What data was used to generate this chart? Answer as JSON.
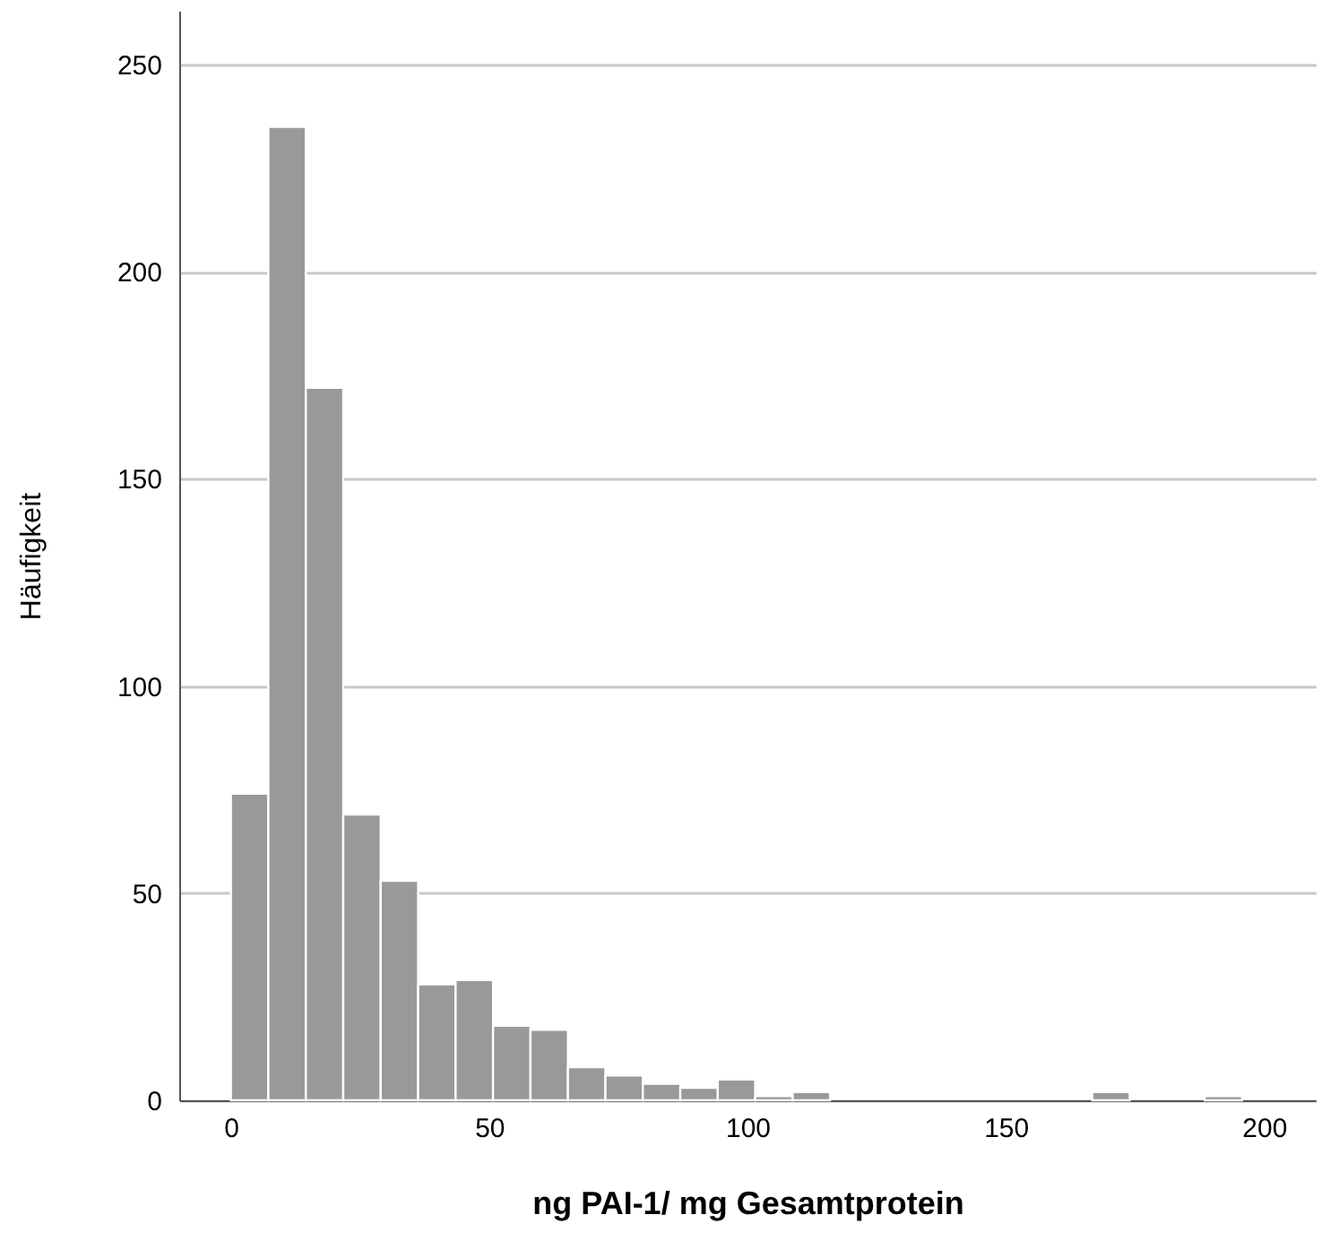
{
  "chart_data": {
    "type": "histogram",
    "xlabel": "ng PAI-1/ mg Gesamtprotein",
    "ylabel": "Häufigkeit",
    "bins": [
      0,
      7.25,
      14.5,
      21.75,
      29,
      36.25,
      43.5,
      50.75,
      58,
      65.25,
      72.5,
      79.75,
      87,
      94.25,
      101.5,
      108.75,
      116,
      123.25,
      130.5,
      137.75,
      145,
      152.25,
      159.5,
      166.75,
      174,
      181.25,
      188.5,
      195.75
    ],
    "values": [
      74,
      235,
      172,
      69,
      53,
      28,
      29,
      18,
      17,
      8,
      6,
      4,
      3,
      5,
      1,
      2,
      0,
      0,
      0,
      0,
      0,
      0,
      0,
      2,
      0,
      0,
      1
    ],
    "color": "#999999",
    "xlim": [
      -10,
      210
    ],
    "xticks": [
      0,
      50,
      100,
      150,
      200
    ],
    "ylim": [
      0,
      263
    ],
    "yticks": [
      0,
      50,
      100,
      150,
      200,
      250
    ],
    "grid": "y"
  }
}
